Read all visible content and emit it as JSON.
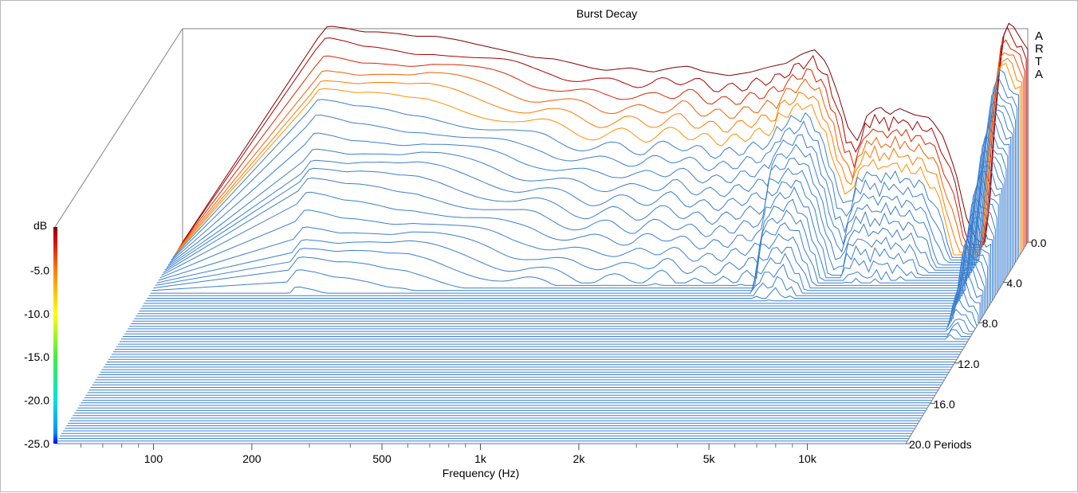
{
  "chart_data": {
    "type": "waterfall",
    "title": "Burst Decay",
    "brand_letters": [
      "A",
      "R",
      "T",
      "A"
    ],
    "xlabel": "Frequency (Hz)",
    "x_scale": "log",
    "x_range": [
      50,
      20000
    ],
    "x_tick_labels": [
      {
        "value": 100,
        "label": "100"
      },
      {
        "value": 200,
        "label": "200"
      },
      {
        "value": 500,
        "label": "500"
      },
      {
        "value": 1000,
        "label": "1k"
      },
      {
        "value": 2000,
        "label": "2k"
      },
      {
        "value": 5000,
        "label": "5k"
      },
      {
        "value": 10000,
        "label": "10k"
      }
    ],
    "x_minor_ticks": [
      60,
      70,
      80,
      90,
      300,
      400,
      600,
      700,
      800,
      900,
      3000,
      4000,
      6000,
      7000,
      8000,
      9000
    ],
    "z_label": "Periods",
    "z_range": [
      0,
      20
    ],
    "z_tick_labels": [
      {
        "value": 0,
        "label": "0.0"
      },
      {
        "value": 4,
        "label": "4.0"
      },
      {
        "value": 8,
        "label": "8.0"
      },
      {
        "value": 12,
        "label": "12.0"
      },
      {
        "value": 16,
        "label": "16.0"
      },
      {
        "value": 20,
        "label": "20.0 Periods"
      }
    ],
    "colorbar": {
      "label": "dB",
      "range": [
        -25,
        0
      ],
      "tick_labels": [
        {
          "value": -5,
          "label": "-5.0"
        },
        {
          "value": -10,
          "label": "-10.0"
        },
        {
          "value": -15,
          "label": "-15.0"
        },
        {
          "value": -20,
          "label": "-20.0"
        },
        {
          "value": -25,
          "label": "-25.0"
        }
      ]
    },
    "slices": 80,
    "first_slice_response_db": {
      "freq": [
        130,
        140,
        160,
        180,
        200,
        230,
        260,
        300,
        350,
        400,
        500,
        600,
        700,
        800,
        900,
        1000,
        1200,
        1400,
        1600,
        1800,
        2000,
        2400,
        2800,
        3200,
        3600,
        4000,
        4400,
        4800,
        5200,
        5600,
        6000,
        6400,
        7000,
        7500,
        8000,
        9000,
        10000,
        11000,
        12000,
        13000,
        14000,
        15000,
        16000,
        16800,
        17500,
        18200,
        19000,
        20000
      ],
      "db": [
        -1.8,
        -0.3,
        -0.6,
        -1.0,
        -1.0,
        -1.2,
        -1.5,
        -1.5,
        -1.9,
        -2.4,
        -3.2,
        -3.9,
        -4.1,
        -4.6,
        -5.1,
        -5.4,
        -5.1,
        -5.6,
        -5.1,
        -4.9,
        -5.5,
        -6.0,
        -5.6,
        -5.0,
        -4.6,
        -3.6,
        -3.0,
        -4.5,
        -8.0,
        -12.0,
        -13.5,
        -10.5,
        -9.5,
        -10.5,
        -9.7,
        -10.5,
        -10.8,
        -13.0,
        -17.0,
        -22.5,
        -25.0,
        -25.0,
        -9.0,
        -1.5,
        0.0,
        -0.5,
        -1.8,
        -3.0
      ]
    }
  }
}
